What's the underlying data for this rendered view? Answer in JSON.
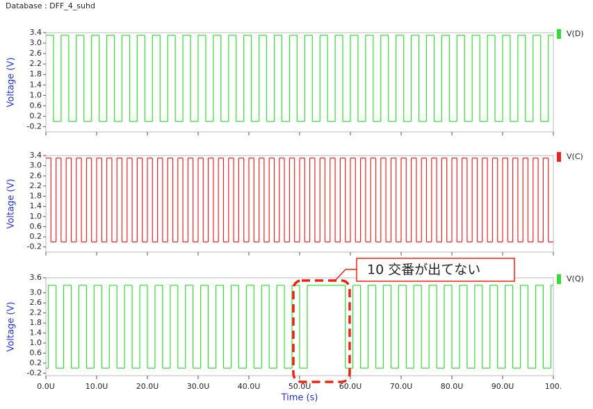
{
  "header": {
    "title": "Database : DFF_4_suhd"
  },
  "annotation": {
    "text": "10 交番が出てない"
  },
  "chart_data": [
    {
      "type": "step",
      "ylabel": "Voltage (V)",
      "ylim": [
        -0.4,
        3.4
      ],
      "yticks": [
        {
          "value": 3.4,
          "label": "3.4"
        },
        {
          "value": 3,
          "label": "3.0"
        },
        2.6,
        2.2,
        1.8,
        1.4,
        {
          "value": 1,
          "label": "1.0"
        },
        0.6,
        0.2,
        -0.2
      ],
      "xlim": [
        0,
        100
      ],
      "xticks": [
        0,
        10,
        20,
        30,
        40,
        50,
        60,
        70,
        80,
        90,
        100
      ],
      "series": [
        {
          "name": "V(D)",
          "color": "#33dd33",
          "x": [
            0,
            1.5,
            3,
            4.5,
            6,
            7.5,
            9,
            10.5,
            12,
            13.5,
            15,
            16.5,
            18,
            19.5,
            21,
            22.5,
            24,
            25.5,
            27,
            28.5,
            30,
            31.5,
            33,
            34.5,
            36,
            37.5,
            39,
            40.5,
            42,
            43.5,
            45,
            46.5,
            48,
            49.5,
            51,
            52.5,
            54,
            55.5,
            57,
            58.5,
            60,
            61.5,
            63,
            64.5,
            66,
            67.5,
            69,
            70.5,
            72,
            73.5,
            75,
            76.5,
            78,
            79.5,
            81,
            82.5,
            84,
            85.5,
            87,
            88.5,
            90,
            91.5,
            93,
            94.5,
            96,
            97.5,
            99
          ],
          "values": [
            3.3,
            0,
            3.3,
            0,
            3.3,
            0,
            3.3,
            0,
            3.3,
            0,
            3.3,
            0,
            3.3,
            0,
            3.3,
            0,
            3.3,
            0,
            3.3,
            0,
            3.3,
            0,
            3.3,
            0,
            3.3,
            0,
            3.3,
            0,
            3.3,
            0,
            3.3,
            0,
            3.3,
            0,
            3.3,
            0,
            3.3,
            0,
            3.3,
            0,
            3.3,
            0,
            3.3,
            0,
            3.3,
            0,
            3.3,
            0,
            3.3,
            0,
            3.3,
            0,
            3.3,
            0,
            3.3,
            0,
            3.3,
            0,
            3.3,
            0,
            3.3,
            0,
            3.3,
            0,
            3.3,
            0,
            3.3
          ]
        }
      ]
    },
    {
      "type": "step",
      "ylabel": "Voltage (V)",
      "ylim": [
        -0.4,
        3.4
      ],
      "yticks": [
        {
          "value": 3.4,
          "label": "3.4"
        },
        {
          "value": 3,
          "label": "3.0"
        },
        2.6,
        2.2,
        1.8,
        1.4,
        {
          "value": 1,
          "label": "1.0"
        },
        0.6,
        0.2,
        -0.2
      ],
      "xlim": [
        0,
        100
      ],
      "xticks": [
        0,
        10,
        20,
        30,
        40,
        50,
        60,
        70,
        80,
        90,
        100
      ],
      "series": [
        {
          "name": "V(C)",
          "color": "#ee2222",
          "x": [
            0,
            1,
            2,
            3,
            4,
            5,
            6,
            7,
            8,
            9,
            10,
            11,
            12,
            13,
            14,
            15,
            16,
            17,
            18,
            19,
            20,
            21,
            22,
            23,
            24,
            25,
            26,
            27,
            28,
            29,
            30,
            31,
            32,
            33,
            34,
            35,
            36,
            37,
            38,
            39,
            40,
            41,
            42,
            43,
            44,
            45,
            46,
            47,
            48,
            49,
            50,
            51,
            52,
            53,
            54,
            55,
            56,
            57,
            58,
            59,
            60,
            61,
            62,
            63,
            64,
            65,
            66,
            67,
            68,
            69,
            70,
            71,
            72,
            73,
            74,
            75,
            76,
            77,
            78,
            79,
            80,
            81,
            82,
            83,
            84,
            85,
            86,
            87,
            88,
            89,
            90,
            91,
            92,
            93,
            94,
            95,
            96,
            97,
            98,
            99
          ],
          "values": [
            3.3,
            0,
            3.3,
            0,
            3.3,
            0,
            3.3,
            0,
            3.3,
            0,
            3.3,
            0,
            3.3,
            0,
            3.3,
            0,
            3.3,
            0,
            3.3,
            0,
            3.3,
            0,
            3.3,
            0,
            3.3,
            0,
            3.3,
            0,
            3.3,
            0,
            3.3,
            0,
            3.3,
            0,
            3.3,
            0,
            3.3,
            0,
            3.3,
            0,
            3.3,
            0,
            3.3,
            0,
            3.3,
            0,
            3.3,
            0,
            3.3,
            0,
            3.3,
            0,
            3.3,
            0,
            3.3,
            0,
            3.3,
            0,
            3.3,
            0,
            3.3,
            0,
            3.3,
            0,
            3.3,
            0,
            3.3,
            0,
            3.3,
            0,
            3.3,
            0,
            3.3,
            0,
            3.3,
            0,
            3.3,
            0,
            3.3,
            0,
            3.3,
            0,
            3.3,
            0,
            3.3,
            0,
            3.3,
            0,
            3.3,
            0,
            3.3,
            0,
            3.3,
            0,
            3.3,
            0,
            3.3,
            0,
            3.3,
            0
          ]
        }
      ]
    },
    {
      "type": "step",
      "ylabel": "Voltage (V)",
      "xlabel": "Time (s)",
      "ylim": [
        -0.3,
        3.6
      ],
      "yticks": [
        3.6,
        {
          "value": 3,
          "label": "3.0"
        },
        2.6,
        2.2,
        1.8,
        1.4,
        {
          "value": 1,
          "label": "1.0"
        },
        0.6,
        0.2,
        -0.2
      ],
      "xlim": [
        0,
        100
      ],
      "xticks": [
        {
          "value": 0,
          "label": "0.0U"
        },
        {
          "value": 10,
          "label": "10.0U"
        },
        {
          "value": 20,
          "label": "20.0U"
        },
        {
          "value": 30,
          "label": "30.0U"
        },
        {
          "value": 40,
          "label": "40.0U"
        },
        {
          "value": 50,
          "label": "50.0U"
        },
        {
          "value": 60,
          "label": "60.0U"
        },
        {
          "value": 70,
          "label": "70.0U"
        },
        {
          "value": 80,
          "label": "80.0U"
        },
        {
          "value": 90,
          "label": "90.0U"
        },
        {
          "value": 100,
          "label": "100."
        }
      ],
      "series": [
        {
          "name": "V(Q)",
          "color": "#33dd33",
          "x": [
            0,
            0.5,
            2,
            3.5,
            5,
            6.5,
            8,
            9.5,
            11,
            12.5,
            14,
            15.5,
            17,
            18.5,
            20,
            21.5,
            23,
            24.5,
            26,
            27.5,
            29,
            30.5,
            32,
            33.5,
            35,
            36.5,
            38,
            39.5,
            41,
            42.5,
            44,
            45.5,
            47,
            48.5,
            50,
            51.5,
            59,
            60.5,
            62,
            63.5,
            65,
            66.5,
            68,
            69.5,
            71,
            72.5,
            74,
            75.5,
            77,
            78.5,
            80,
            81.5,
            83,
            84.5,
            86,
            87.5,
            89,
            90.5,
            92,
            93.5,
            95,
            96.5,
            98,
            99.5
          ],
          "values": [
            0,
            3.3,
            0,
            3.3,
            0,
            3.3,
            0,
            3.3,
            0,
            3.3,
            0,
            3.3,
            0,
            3.3,
            0,
            3.3,
            0,
            3.3,
            0,
            3.3,
            0,
            3.3,
            0,
            3.3,
            0,
            3.3,
            0,
            3.3,
            0,
            3.3,
            0,
            3.3,
            0,
            3.3,
            0,
            3.3,
            0,
            3.3,
            0,
            3.3,
            0,
            3.3,
            0,
            3.3,
            0,
            3.3,
            0,
            3.3,
            0,
            3.3,
            0,
            3.3,
            0,
            3.3,
            0,
            3.3,
            0,
            3.3,
            0,
            3.3,
            0,
            3.3,
            0,
            3.3
          ]
        }
      ]
    }
  ]
}
